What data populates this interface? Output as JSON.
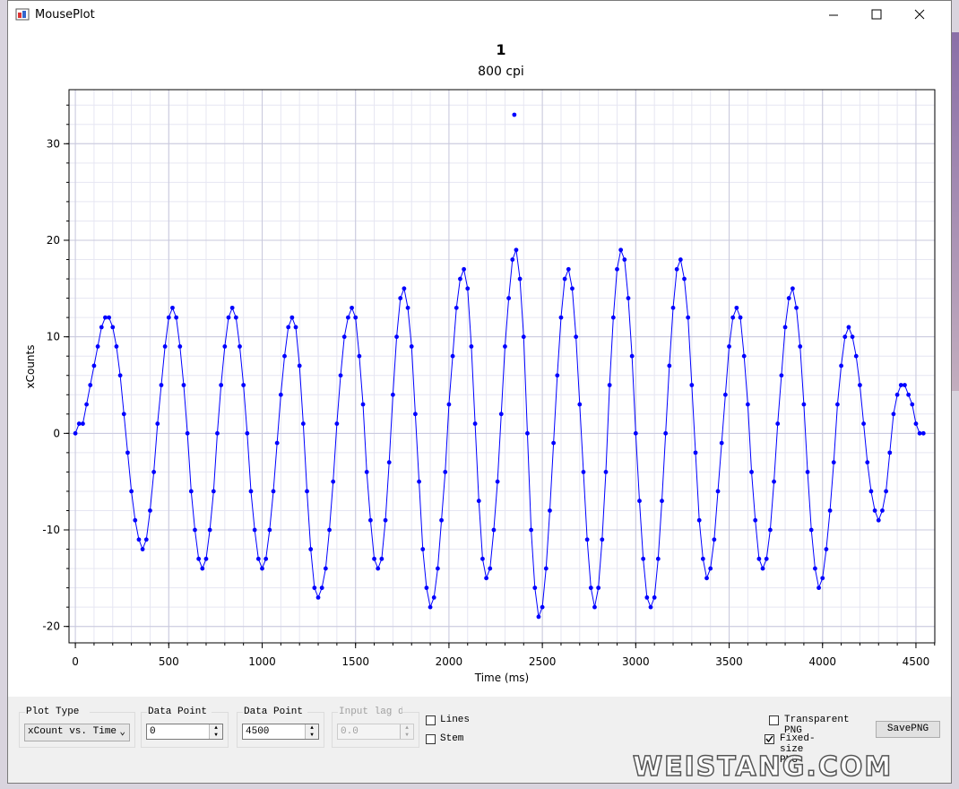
{
  "window": {
    "title": "MousePlot"
  },
  "chart_data": {
    "type": "line",
    "markers": true,
    "title": "1",
    "subtitle": "800 cpi",
    "xlabel": "Time (ms)",
    "ylabel": "xCounts",
    "x": [
      0,
      20,
      40,
      60,
      80,
      100,
      120,
      140,
      160,
      180,
      200,
      220,
      240,
      260,
      280,
      300,
      320,
      340,
      360,
      380,
      400,
      420,
      440,
      460,
      480,
      500,
      520,
      540,
      560,
      580,
      600,
      620,
      640,
      660,
      680,
      700,
      720,
      740,
      760,
      780,
      800,
      820,
      840,
      860,
      880,
      900,
      920,
      940,
      960,
      980,
      1000,
      1020,
      1040,
      1060,
      1080,
      1100,
      1120,
      1140,
      1160,
      1180,
      1200,
      1220,
      1240,
      1260,
      1280,
      1300,
      1320,
      1340,
      1360,
      1380,
      1400,
      1420,
      1440,
      1460,
      1480,
      1500,
      1520,
      1540,
      1560,
      1580,
      1600,
      1620,
      1640,
      1660,
      1680,
      1700,
      1720,
      1740,
      1760,
      1780,
      1800,
      1820,
      1840,
      1860,
      1880,
      1900,
      1920,
      1940,
      1960,
      1980,
      2000,
      2020,
      2040,
      2060,
      2080,
      2100,
      2120,
      2140,
      2160,
      2180,
      2200,
      2220,
      2240,
      2260,
      2280,
      2300,
      2320,
      2340,
      2360,
      2380,
      2400,
      2420,
      2440,
      2460,
      2480,
      2500,
      2520,
      2540,
      2560,
      2580,
      2600,
      2620,
      2640,
      2660,
      2680,
      2700,
      2720,
      2740,
      2760,
      2780,
      2800,
      2820,
      2840,
      2860,
      2880,
      2900,
      2920,
      2940,
      2960,
      2980,
      3000,
      3020,
      3040,
      3060,
      3080,
      3100,
      3120,
      3140,
      3160,
      3180,
      3200,
      3220,
      3240,
      3260,
      3280,
      3300,
      3320,
      3340,
      3360,
      3380,
      3400,
      3420,
      3440,
      3460,
      3480,
      3500,
      3520,
      3540,
      3560,
      3580,
      3600,
      3620,
      3640,
      3660,
      3680,
      3700,
      3720,
      3740,
      3760,
      3780,
      3800,
      3820,
      3840,
      3860,
      3880,
      3900,
      3920,
      3940,
      3960,
      3980,
      4000,
      4020,
      4040,
      4060,
      4080,
      4100,
      4120,
      4140,
      4160,
      4180,
      4200,
      4220,
      4240,
      4260,
      4280,
      4300,
      4320,
      4340,
      4360,
      4380,
      4400,
      4420,
      4440,
      4460,
      4480,
      4500,
      4520,
      4540
    ],
    "series": [
      {
        "color": "#0000ff",
        "values": [
          0,
          1,
          1,
          3,
          5,
          7,
          9,
          11,
          12,
          12,
          11,
          9,
          6,
          2,
          -2,
          -6,
          -9,
          -11,
          -12,
          -11,
          -8,
          -4,
          1,
          5,
          9,
          12,
          13,
          12,
          9,
          5,
          0,
          -6,
          -10,
          -13,
          -14,
          -13,
          -10,
          -6,
          0,
          5,
          9,
          12,
          13,
          12,
          9,
          5,
          0,
          -6,
          -10,
          -13,
          -14,
          -13,
          -10,
          -6,
          -1,
          4,
          8,
          11,
          12,
          11,
          7,
          1,
          -6,
          -12,
          -16,
          -17,
          -16,
          -14,
          -10,
          -5,
          1,
          6,
          10,
          12,
          13,
          12,
          8,
          3,
          -4,
          -9,
          -13,
          -14,
          -13,
          -9,
          -3,
          4,
          10,
          14,
          15,
          13,
          9,
          2,
          -5,
          -12,
          -16,
          -18,
          -17,
          -14,
          -9,
          -4,
          3,
          8,
          13,
          16,
          17,
          15,
          9,
          1,
          -7,
          -13,
          -15,
          -14,
          -10,
          -5,
          2,
          9,
          14,
          18,
          19,
          16,
          10,
          0,
          -10,
          -16,
          -19,
          -18,
          -14,
          -8,
          -1,
          6,
          12,
          16,
          17,
          15,
          10,
          3,
          -4,
          -11,
          -16,
          -18,
          -16,
          -11,
          -4,
          5,
          12,
          17,
          19,
          18,
          14,
          8,
          0,
          -7,
          -13,
          -17,
          -18,
          -17,
          -13,
          -7,
          0,
          7,
          13,
          17,
          18,
          16,
          12,
          5,
          -2,
          -9,
          -13,
          -15,
          -14,
          -11,
          -6,
          -1,
          4,
          9,
          12,
          13,
          12,
          8,
          3,
          -4,
          -9,
          -13,
          -14,
          -13,
          -10,
          -5,
          1,
          6,
          11,
          14,
          15,
          13,
          9,
          3,
          -4,
          -10,
          -14,
          -16,
          -15,
          -12,
          -8,
          -3,
          3,
          7,
          10,
          11,
          10,
          8,
          5,
          1,
          -3,
          -6,
          -8,
          -9,
          -8,
          -6,
          -2,
          2,
          4,
          5,
          5,
          4,
          3,
          1,
          0,
          0
        ]
      }
    ],
    "outliers": {
      "x": [
        2350
      ],
      "values": [
        33
      ]
    },
    "xlim": [
      -34,
      4601
    ],
    "ylim": [
      -21.7,
      35.6
    ],
    "xticks": [
      0,
      500,
      1000,
      1500,
      2000,
      2500,
      3000,
      3500,
      4000,
      4500
    ],
    "yticks": [
      -20,
      -10,
      0,
      10,
      20,
      30
    ],
    "grid": true
  },
  "controls": {
    "plot_type": {
      "label": "Plot Type",
      "value": "xCount vs. Time"
    },
    "start": {
      "label": "Data Point Start",
      "value": "0"
    },
    "end": {
      "label": "Data Point End",
      "value": "4500"
    },
    "lag": {
      "label": "Input lag delay",
      "value": "0.0"
    },
    "lines": "Lines",
    "stem": "Stem",
    "transparent": "Transparent PNG",
    "fixed": "Fixed-size PNG",
    "fixed_checked": true,
    "save": "SavePNG"
  },
  "watermark": "WEISTANG.COM"
}
